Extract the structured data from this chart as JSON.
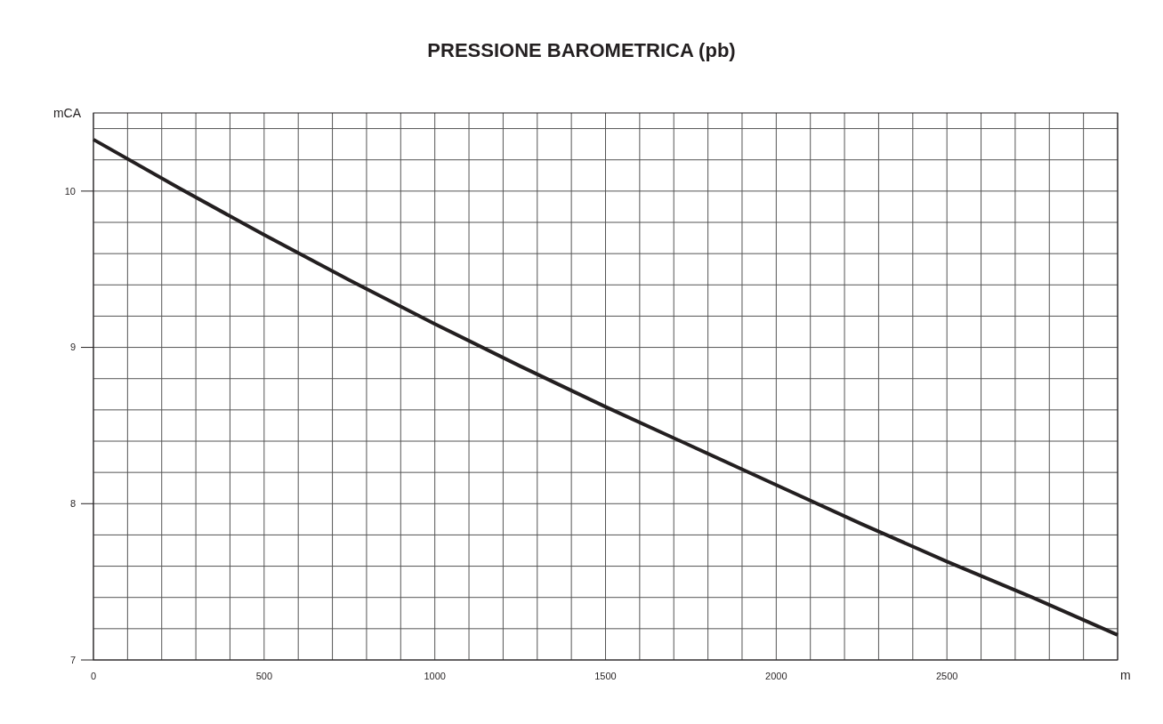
{
  "chart_data": {
    "type": "line",
    "title": "PRESSIONE BAROMETRICA (pb)",
    "xlabel": "m",
    "ylabel": "mCA",
    "x": [
      0,
      250,
      500,
      750,
      1000,
      1250,
      1500,
      1750,
      2000,
      2250,
      2500,
      2750,
      3000
    ],
    "series": [
      {
        "color": "#231f20",
        "values": [
          10.33,
          10.02,
          9.72,
          9.43,
          9.15,
          8.88,
          8.62,
          8.37,
          8.12,
          7.87,
          7.63,
          7.4,
          7.16
        ]
      }
    ],
    "xlim": [
      0,
      3000
    ],
    "ylim": [
      7,
      10.5
    ],
    "xticks": [
      0,
      {
        "value": 100,
        "label": null
      },
      {
        "value": 200,
        "label": null
      },
      {
        "value": 300,
        "label": null
      },
      {
        "value": 400,
        "label": null
      },
      500,
      {
        "value": 600,
        "label": null
      },
      {
        "value": 700,
        "label": null
      },
      {
        "value": 800,
        "label": null
      },
      {
        "value": 900,
        "label": null
      },
      1000,
      {
        "value": 1100,
        "label": null
      },
      {
        "value": 1200,
        "label": null
      },
      {
        "value": 1300,
        "label": null
      },
      {
        "value": 1400,
        "label": null
      },
      1500,
      {
        "value": 1600,
        "label": null
      },
      {
        "value": 1700,
        "label": null
      },
      {
        "value": 1800,
        "label": null
      },
      {
        "value": 1900,
        "label": null
      },
      2000,
      {
        "value": 2100,
        "label": null
      },
      {
        "value": 2200,
        "label": null
      },
      {
        "value": 2300,
        "label": null
      },
      {
        "value": 2400,
        "label": null
      },
      2500,
      {
        "value": 2600,
        "label": null
      },
      {
        "value": 2700,
        "label": null
      },
      {
        "value": 2800,
        "label": null
      },
      {
        "value": 2900,
        "label": null
      },
      {
        "value": 3000,
        "label": null
      }
    ],
    "yticks": [
      7,
      {
        "value": 7.2,
        "label": null
      },
      {
        "value": 7.4,
        "label": null
      },
      {
        "value": 7.6,
        "label": null
      },
      {
        "value": 7.8,
        "label": null
      },
      8,
      {
        "value": 8.2,
        "label": null
      },
      {
        "value": 8.4,
        "label": null
      },
      {
        "value": 8.6,
        "label": null
      },
      {
        "value": 8.8,
        "label": null
      },
      9,
      {
        "value": 9.2,
        "label": null
      },
      {
        "value": 9.4,
        "label": null
      },
      {
        "value": 9.6,
        "label": null
      },
      {
        "value": 9.8,
        "label": null
      },
      10,
      {
        "value": 10.2,
        "label": null
      },
      {
        "value": 10.4,
        "label": null
      }
    ],
    "grid": true,
    "marker": "none",
    "line_style": "solid"
  }
}
